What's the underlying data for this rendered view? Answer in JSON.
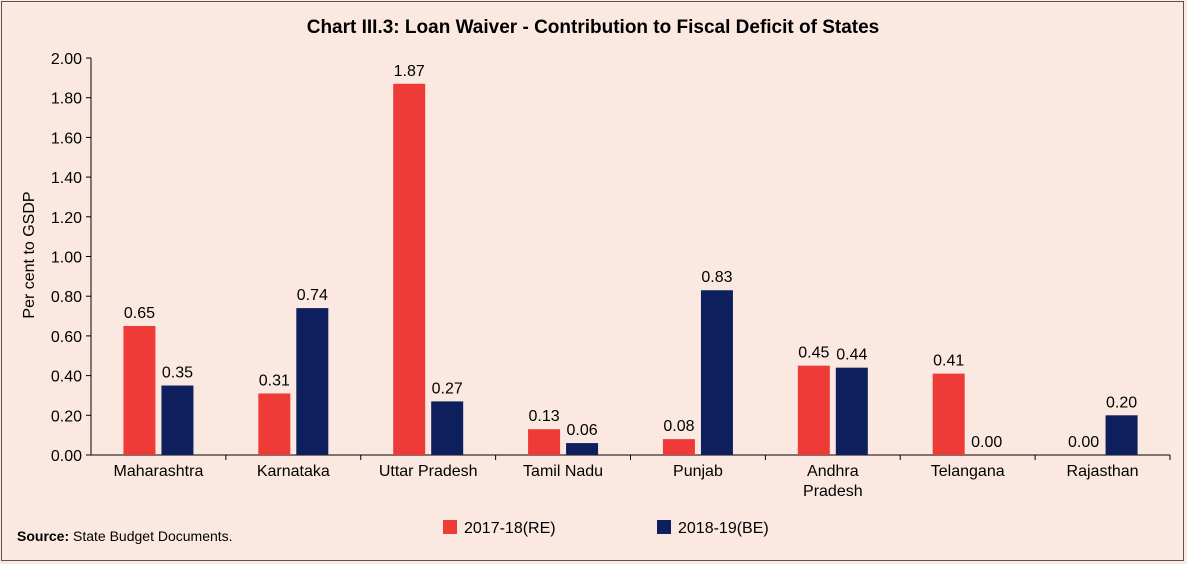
{
  "chart_data": {
    "type": "bar",
    "title": "Chart III.3: Loan Waiver - Contribution to Fiscal Deficit of States",
    "xlabel": "",
    "ylabel": "Per cent to GSDP",
    "ylim": [
      0,
      2.0
    ],
    "yticks": [
      "0.00",
      "0.20",
      "0.40",
      "0.60",
      "0.80",
      "1.00",
      "1.20",
      "1.40",
      "1.60",
      "1.80",
      "2.00"
    ],
    "categories": [
      [
        "Maharashtra"
      ],
      [
        "Karnataka"
      ],
      [
        "Uttar Pradesh"
      ],
      [
        "Tamil Nadu"
      ],
      [
        "Punjab"
      ],
      [
        "Andhra",
        "Pradesh"
      ],
      [
        "Telangana"
      ],
      [
        "Rajasthan"
      ]
    ],
    "series": [
      {
        "name": "2017-18(RE)",
        "color": "#ee3b38",
        "values": [
          0.65,
          0.31,
          1.87,
          0.13,
          0.08,
          0.45,
          0.41,
          0.0
        ],
        "labels": [
          "0.65",
          "0.31",
          "1.87",
          "0.13",
          "0.08",
          "0.45",
          "0.41",
          "0.00"
        ]
      },
      {
        "name": "2018-19(BE)",
        "color": "#0d1f5c",
        "values": [
          0.35,
          0.74,
          0.27,
          0.06,
          0.83,
          0.44,
          0.0,
          0.2
        ],
        "labels": [
          "0.35",
          "0.74",
          "0.27",
          "0.06",
          "0.83",
          "0.44",
          "0.00",
          "0.20"
        ]
      }
    ],
    "legend_position": "bottom",
    "grid": false
  },
  "source": {
    "label": "Source:",
    "text": " State Budget Documents."
  }
}
